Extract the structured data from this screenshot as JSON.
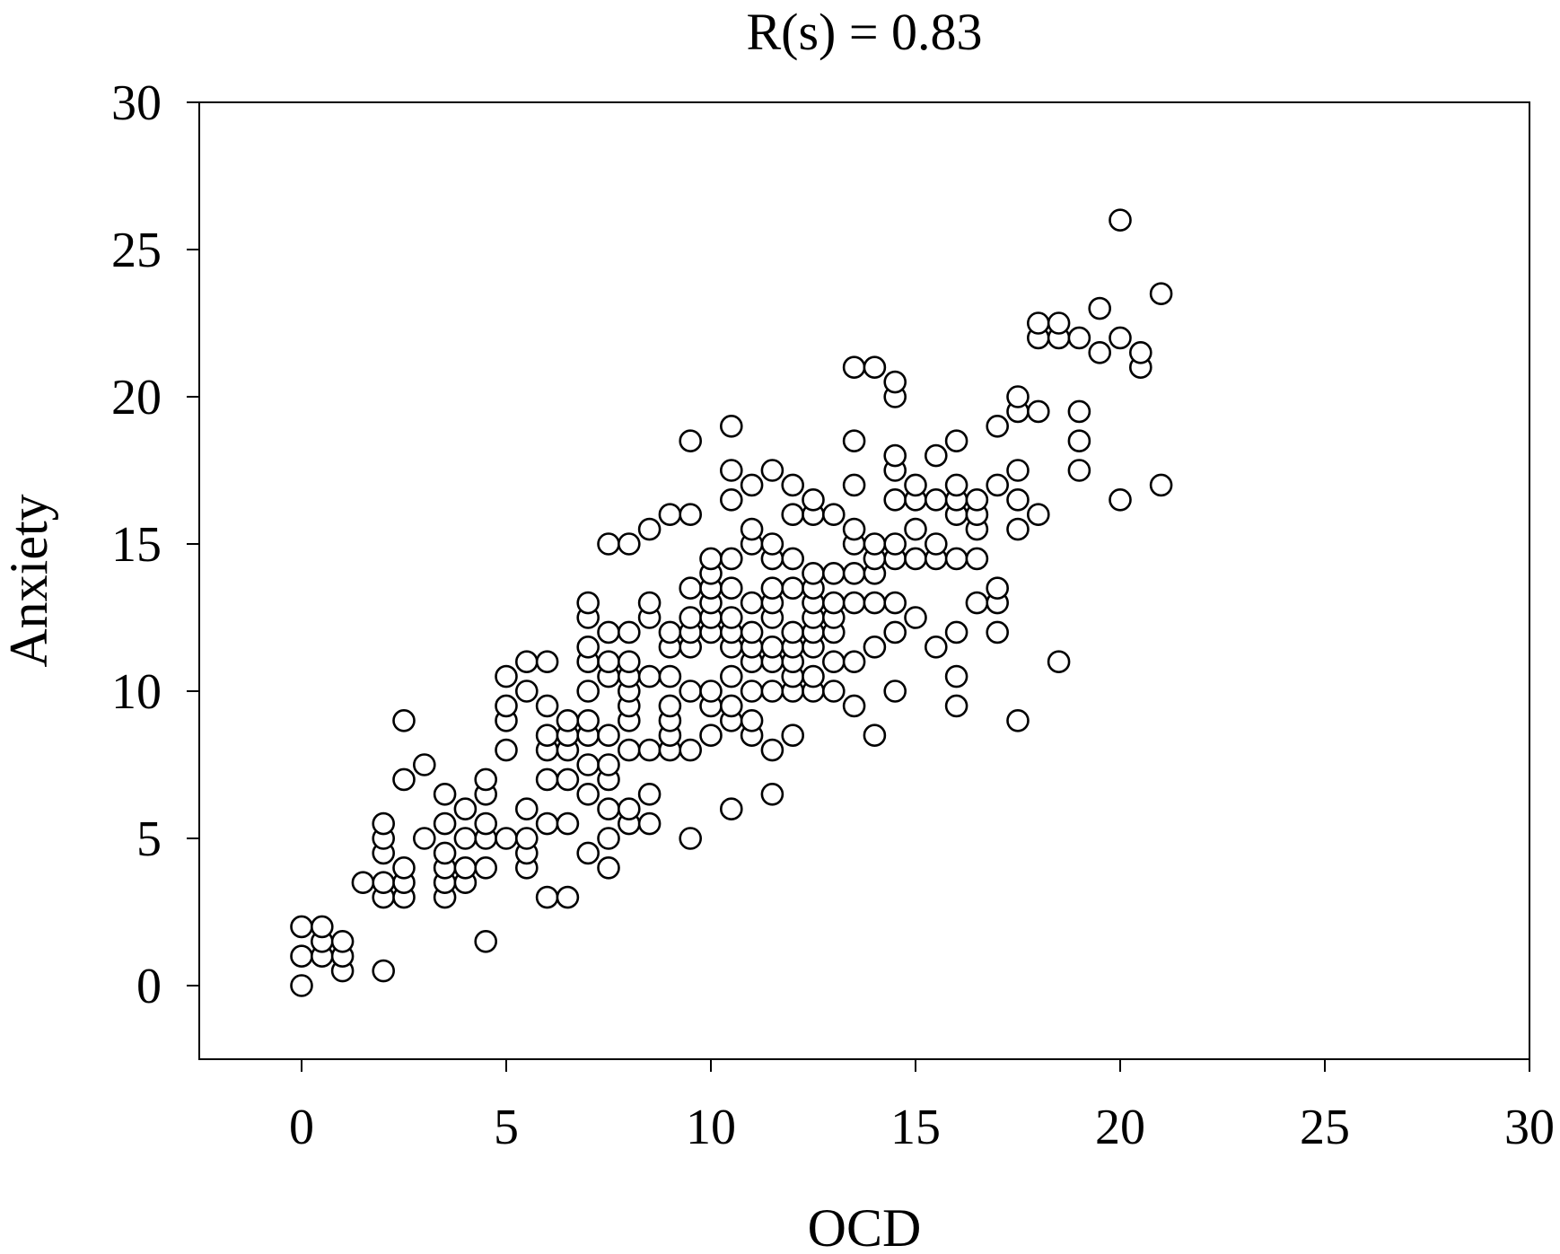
{
  "chart_data": {
    "type": "scatter",
    "title": "R(s) = 0.83",
    "xlabel": "OCD",
    "ylabel": "Anxiety",
    "xlim": [
      -2.5,
      30
    ],
    "ylim": [
      -2.5,
      30
    ],
    "xticks": [
      0,
      5,
      10,
      15,
      20,
      25,
      30
    ],
    "yticks": [
      0,
      5,
      10,
      15,
      20,
      25,
      30
    ],
    "xtick_labels": [
      "0",
      "5",
      "10",
      "15",
      "20",
      "25",
      "30"
    ],
    "ytick_labels": [
      "0",
      "5",
      "10",
      "15",
      "20",
      "25",
      "30"
    ],
    "grid": false,
    "legend": "none",
    "marker": "open-circle",
    "points": [
      [
        0,
        0
      ],
      [
        0,
        1
      ],
      [
        0,
        2
      ],
      [
        0.5,
        1
      ],
      [
        0.5,
        1.5
      ],
      [
        0.5,
        2
      ],
      [
        1,
        0.5
      ],
      [
        1,
        1
      ],
      [
        1,
        1.5
      ],
      [
        1.5,
        3.5
      ],
      [
        2,
        0.5
      ],
      [
        2,
        3
      ],
      [
        2,
        3.5
      ],
      [
        2,
        4.5
      ],
      [
        2,
        5
      ],
      [
        2,
        5.5
      ],
      [
        2.5,
        3
      ],
      [
        2.5,
        3.5
      ],
      [
        2.5,
        4
      ],
      [
        2.5,
        7
      ],
      [
        2.5,
        9
      ],
      [
        3,
        5
      ],
      [
        3,
        7.5
      ],
      [
        3.5,
        3
      ],
      [
        3.5,
        3.5
      ],
      [
        3.5,
        4
      ],
      [
        3.5,
        4.5
      ],
      [
        3.5,
        5.5
      ],
      [
        3.5,
        6.5
      ],
      [
        4,
        3.5
      ],
      [
        4,
        4
      ],
      [
        4,
        5
      ],
      [
        4,
        6
      ],
      [
        4.5,
        1.5
      ],
      [
        4.5,
        4
      ],
      [
        4.5,
        5
      ],
      [
        4.5,
        5.5
      ],
      [
        4.5,
        6.5
      ],
      [
        4.5,
        7
      ],
      [
        5,
        5
      ],
      [
        5,
        8
      ],
      [
        5,
        9
      ],
      [
        5,
        9.5
      ],
      [
        5,
        10.5
      ],
      [
        5.5,
        4
      ],
      [
        5.5,
        4.5
      ],
      [
        5.5,
        5
      ],
      [
        5.5,
        6
      ],
      [
        5.5,
        10
      ],
      [
        5.5,
        11
      ],
      [
        6,
        3
      ],
      [
        6,
        5.5
      ],
      [
        6,
        7
      ],
      [
        6,
        8
      ],
      [
        6,
        8.5
      ],
      [
        6,
        9.5
      ],
      [
        6,
        11
      ],
      [
        6.5,
        3
      ],
      [
        6.5,
        5.5
      ],
      [
        6.5,
        7
      ],
      [
        6.5,
        8
      ],
      [
        6.5,
        8.5
      ],
      [
        6.5,
        9
      ],
      [
        7,
        4.5
      ],
      [
        7,
        6.5
      ],
      [
        7,
        7.5
      ],
      [
        7,
        8.5
      ],
      [
        7,
        9
      ],
      [
        7,
        10
      ],
      [
        7,
        11
      ],
      [
        7,
        11.5
      ],
      [
        7,
        12.5
      ],
      [
        7,
        13
      ],
      [
        7.5,
        4
      ],
      [
        7.5,
        5
      ],
      [
        7.5,
        6
      ],
      [
        7.5,
        7
      ],
      [
        7.5,
        7.5
      ],
      [
        7.5,
        8.5
      ],
      [
        7.5,
        10.5
      ],
      [
        7.5,
        11
      ],
      [
        7.5,
        12
      ],
      [
        7.5,
        15
      ],
      [
        8,
        5.5
      ],
      [
        8,
        6
      ],
      [
        8,
        8
      ],
      [
        8,
        9
      ],
      [
        8,
        9.5
      ],
      [
        8,
        10
      ],
      [
        8,
        10.5
      ],
      [
        8,
        11
      ],
      [
        8,
        12
      ],
      [
        8,
        15
      ],
      [
        8.5,
        5.5
      ],
      [
        8.5,
        6.5
      ],
      [
        8.5,
        8
      ],
      [
        8.5,
        10.5
      ],
      [
        8.5,
        12.5
      ],
      [
        8.5,
        13
      ],
      [
        8.5,
        15.5
      ],
      [
        9,
        8
      ],
      [
        9,
        8.5
      ],
      [
        9,
        9
      ],
      [
        9,
        9.5
      ],
      [
        9,
        10.5
      ],
      [
        9,
        11.5
      ],
      [
        9,
        12
      ],
      [
        9,
        16
      ],
      [
        9.5,
        5
      ],
      [
        9.5,
        8
      ],
      [
        9.5,
        10
      ],
      [
        9.5,
        11.5
      ],
      [
        9.5,
        12
      ],
      [
        9.5,
        12.5
      ],
      [
        9.5,
        13.5
      ],
      [
        9.5,
        16
      ],
      [
        9.5,
        18.5
      ],
      [
        10,
        8.5
      ],
      [
        10,
        9.5
      ],
      [
        10,
        10
      ],
      [
        10,
        12
      ],
      [
        10,
        12.5
      ],
      [
        10,
        13
      ],
      [
        10,
        13.5
      ],
      [
        10,
        14
      ],
      [
        10,
        14.5
      ],
      [
        10.5,
        6
      ],
      [
        10.5,
        9
      ],
      [
        10.5,
        9.5
      ],
      [
        10.5,
        10.5
      ],
      [
        10.5,
        11.5
      ],
      [
        10.5,
        12
      ],
      [
        10.5,
        12.5
      ],
      [
        10.5,
        13.5
      ],
      [
        10.5,
        14.5
      ],
      [
        10.5,
        16.5
      ],
      [
        10.5,
        17.5
      ],
      [
        10.5,
        19
      ],
      [
        11,
        8.5
      ],
      [
        11,
        9
      ],
      [
        11,
        10
      ],
      [
        11,
        11
      ],
      [
        11,
        11.5
      ],
      [
        11,
        12
      ],
      [
        11,
        13
      ],
      [
        11,
        15
      ],
      [
        11,
        15.5
      ],
      [
        11,
        17
      ],
      [
        11.5,
        6.5
      ],
      [
        11.5,
        8
      ],
      [
        11.5,
        10
      ],
      [
        11.5,
        11
      ],
      [
        11.5,
        11.5
      ],
      [
        11.5,
        12.5
      ],
      [
        11.5,
        13
      ],
      [
        11.5,
        13.5
      ],
      [
        11.5,
        14.5
      ],
      [
        11.5,
        15
      ],
      [
        11.5,
        17.5
      ],
      [
        12,
        8.5
      ],
      [
        12,
        10
      ],
      [
        12,
        10.5
      ],
      [
        12,
        11
      ],
      [
        12,
        11.5
      ],
      [
        12,
        12
      ],
      [
        12,
        13.5
      ],
      [
        12,
        14.5
      ],
      [
        12,
        16
      ],
      [
        12,
        17
      ],
      [
        12.5,
        10
      ],
      [
        12.5,
        10.5
      ],
      [
        12.5,
        11.5
      ],
      [
        12.5,
        12
      ],
      [
        12.5,
        12.5
      ],
      [
        12.5,
        13
      ],
      [
        12.5,
        13.5
      ],
      [
        12.5,
        14
      ],
      [
        12.5,
        16
      ],
      [
        12.5,
        16.5
      ],
      [
        13,
        10
      ],
      [
        13,
        11
      ],
      [
        13,
        12
      ],
      [
        13,
        12.5
      ],
      [
        13,
        13
      ],
      [
        13,
        14
      ],
      [
        13,
        16
      ],
      [
        13.5,
        9.5
      ],
      [
        13.5,
        11
      ],
      [
        13.5,
        13
      ],
      [
        13.5,
        14
      ],
      [
        13.5,
        15
      ],
      [
        13.5,
        15.5
      ],
      [
        13.5,
        17
      ],
      [
        13.5,
        18.5
      ],
      [
        13.5,
        21
      ],
      [
        14,
        8.5
      ],
      [
        14,
        11.5
      ],
      [
        14,
        13
      ],
      [
        14,
        14
      ],
      [
        14,
        14.5
      ],
      [
        14,
        15
      ],
      [
        14,
        21
      ],
      [
        14.5,
        10
      ],
      [
        14.5,
        12
      ],
      [
        14.5,
        13
      ],
      [
        14.5,
        14.5
      ],
      [
        14.5,
        15
      ],
      [
        14.5,
        16.5
      ],
      [
        14.5,
        17.5
      ],
      [
        14.5,
        18
      ],
      [
        14.5,
        20
      ],
      [
        14.5,
        20.5
      ],
      [
        15,
        12.5
      ],
      [
        15,
        14.5
      ],
      [
        15,
        15.5
      ],
      [
        15,
        16.5
      ],
      [
        15,
        17
      ],
      [
        15.5,
        11.5
      ],
      [
        15.5,
        14.5
      ],
      [
        15.5,
        15
      ],
      [
        15.5,
        16.5
      ],
      [
        15.5,
        18
      ],
      [
        16,
        9.5
      ],
      [
        16,
        10.5
      ],
      [
        16,
        12
      ],
      [
        16,
        14.5
      ],
      [
        16,
        16
      ],
      [
        16,
        16.5
      ],
      [
        16,
        17
      ],
      [
        16,
        18.5
      ],
      [
        16.5,
        13
      ],
      [
        16.5,
        14.5
      ],
      [
        16.5,
        15.5
      ],
      [
        16.5,
        16
      ],
      [
        16.5,
        16.5
      ],
      [
        17,
        12
      ],
      [
        17,
        13
      ],
      [
        17,
        13.5
      ],
      [
        17,
        17
      ],
      [
        17,
        19
      ],
      [
        17.5,
        9
      ],
      [
        17.5,
        15.5
      ],
      [
        17.5,
        16.5
      ],
      [
        17.5,
        17.5
      ],
      [
        17.5,
        19.5
      ],
      [
        17.5,
        20
      ],
      [
        18,
        16
      ],
      [
        18,
        19.5
      ],
      [
        18,
        22
      ],
      [
        18,
        22.5
      ],
      [
        18.5,
        11
      ],
      [
        18.5,
        22
      ],
      [
        18.5,
        22.5
      ],
      [
        19,
        17.5
      ],
      [
        19,
        18.5
      ],
      [
        19,
        19.5
      ],
      [
        19,
        22
      ],
      [
        19.5,
        21.5
      ],
      [
        19.5,
        23
      ],
      [
        20,
        16.5
      ],
      [
        20,
        22
      ],
      [
        20,
        26
      ],
      [
        20.5,
        21
      ],
      [
        20.5,
        21.5
      ],
      [
        21,
        17
      ],
      [
        21,
        23.5
      ]
    ]
  }
}
